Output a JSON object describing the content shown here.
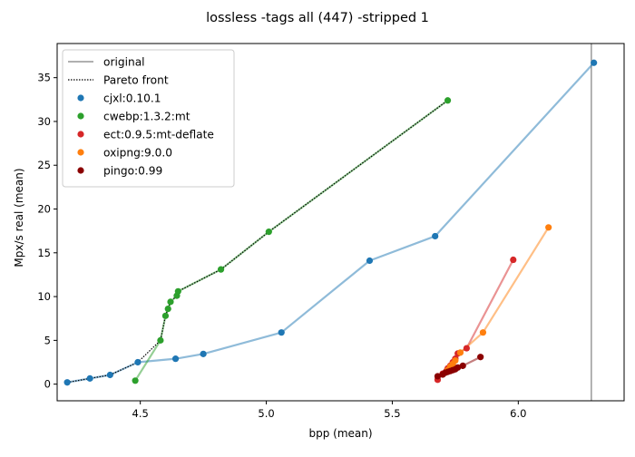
{
  "chart_data": {
    "type": "scatter",
    "title": "lossless -tags all (447) -stripped 1",
    "xlabel": "bpp (mean)",
    "ylabel": "Mpx/s real (mean)",
    "xlim": [
      4.17,
      6.42
    ],
    "ylim": [
      -1.9,
      38.9
    ],
    "xticks": [
      4.5,
      5.0,
      5.5,
      6.0
    ],
    "xtick_labels": [
      "4.5",
      "5.0",
      "5.5",
      "6.0"
    ],
    "yticks": [
      0,
      5,
      10,
      15,
      20,
      25,
      30,
      35
    ],
    "ytick_labels": [
      "0",
      "5",
      "10",
      "15",
      "20",
      "25",
      "30",
      "35"
    ],
    "grid": false,
    "legend_position": "upper-left",
    "original_x": 6.29,
    "legend": {
      "original": "original",
      "pareto": "Pareto front"
    },
    "series": [
      {
        "name": "cjxl:0.10.1",
        "color": "#1f77b4",
        "points": [
          [
            4.21,
            0.2
          ],
          [
            4.3,
            0.65
          ],
          [
            4.38,
            1.05
          ],
          [
            4.49,
            2.5
          ],
          [
            4.64,
            2.9
          ],
          [
            4.75,
            3.45
          ],
          [
            5.06,
            5.9
          ],
          [
            5.41,
            14.1
          ],
          [
            5.67,
            16.9
          ],
          [
            6.3,
            36.7
          ]
        ]
      },
      {
        "name": "cwebp:1.3.2:mt",
        "color": "#2ca02c",
        "points": [
          [
            4.48,
            0.4
          ],
          [
            4.58,
            5.0
          ],
          [
            4.6,
            7.8
          ],
          [
            4.61,
            8.6
          ],
          [
            4.62,
            9.4
          ],
          [
            4.645,
            10.1
          ],
          [
            4.65,
            10.6
          ],
          [
            4.82,
            13.1
          ],
          [
            5.01,
            17.4
          ],
          [
            5.72,
            32.4
          ]
        ]
      },
      {
        "name": "ect:0.9.5:mt-deflate",
        "color": "#d62728",
        "points": [
          [
            5.68,
            0.5
          ],
          [
            5.7,
            1.2
          ],
          [
            5.715,
            1.5
          ],
          [
            5.72,
            1.8
          ],
          [
            5.73,
            2.1
          ],
          [
            5.74,
            2.5
          ],
          [
            5.75,
            2.9
          ],
          [
            5.76,
            3.5
          ],
          [
            5.795,
            4.1
          ],
          [
            5.98,
            14.2
          ]
        ]
      },
      {
        "name": "oxipng:9.0.0",
        "color": "#ff7f0e",
        "points": [
          [
            5.72,
            1.6
          ],
          [
            5.73,
            2.0
          ],
          [
            5.74,
            2.3
          ],
          [
            5.75,
            2.7
          ],
          [
            5.77,
            3.6
          ],
          [
            5.86,
            5.9
          ],
          [
            6.12,
            17.9
          ]
        ]
      },
      {
        "name": "pingo:0.99",
        "color": "#8b0000",
        "points": [
          [
            5.68,
            0.9
          ],
          [
            5.7,
            1.1
          ],
          [
            5.71,
            1.3
          ],
          [
            5.72,
            1.4
          ],
          [
            5.73,
            1.5
          ],
          [
            5.74,
            1.6
          ],
          [
            5.75,
            1.7
          ],
          [
            5.76,
            1.9
          ],
          [
            5.78,
            2.1
          ],
          [
            5.85,
            3.1
          ]
        ]
      }
    ],
    "pareto_front": [
      [
        4.21,
        0.2
      ],
      [
        4.3,
        0.65
      ],
      [
        4.38,
        1.05
      ],
      [
        4.49,
        2.5
      ],
      [
        4.58,
        5.0
      ],
      [
        4.6,
        7.8
      ],
      [
        4.61,
        8.6
      ],
      [
        4.62,
        9.4
      ],
      [
        4.645,
        10.1
      ],
      [
        4.65,
        10.6
      ],
      [
        4.82,
        13.1
      ],
      [
        5.01,
        17.4
      ],
      [
        5.72,
        32.4
      ]
    ]
  }
}
